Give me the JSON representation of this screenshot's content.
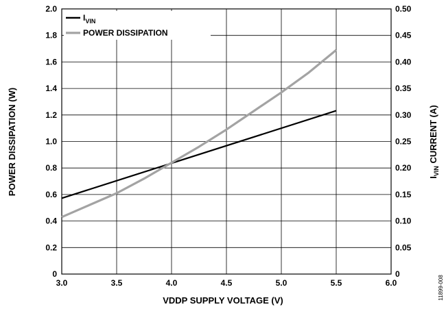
{
  "chart_data": {
    "type": "line",
    "title": "",
    "xlabel": "VDDP SUPPLY VOLTAGE (V)",
    "ylabel_left": "POWER DISSIPATION (W)",
    "ylabel_right": {
      "main": "I",
      "sub": "VIN",
      "rest": " CURRENT (A)"
    },
    "xlim": [
      3.0,
      6.0
    ],
    "ylim_left": [
      0,
      2.0
    ],
    "ylim_right": [
      0,
      0.5
    ],
    "x_ticks": [
      "3.0",
      "3.5",
      "4.0",
      "4.5",
      "5.0",
      "5.5",
      "6.0"
    ],
    "y_left_ticks": [
      "0",
      "0.2",
      "0.4",
      "0.6",
      "0.8",
      "1.0",
      "1.2",
      "1.4",
      "1.6",
      "1.8",
      "2.0"
    ],
    "y_right_ticks": [
      "0",
      "0.05",
      "0.10",
      "0.15",
      "0.20",
      "0.25",
      "0.30",
      "0.35",
      "0.40",
      "0.45",
      "0.50"
    ],
    "grid": true,
    "legend_position": "top-left",
    "series": [
      {
        "legend_main": "I",
        "legend_sub": "VIN",
        "axis": "right",
        "color": "#000000",
        "x": [
          3.0,
          5.5
        ],
        "y": [
          0.143,
          0.308
        ]
      },
      {
        "legend_main": "POWER DISSIPATION",
        "legend_sub": "",
        "axis": "left",
        "color": "#a3a3a3",
        "x": [
          3.0,
          3.25,
          3.5,
          3.75,
          4.0,
          4.25,
          4.5,
          4.75,
          5.0,
          5.25,
          5.5
        ],
        "y": [
          0.43,
          0.52,
          0.61,
          0.72,
          0.84,
          0.96,
          1.09,
          1.23,
          1.37,
          1.52,
          1.69
        ]
      }
    ],
    "figure_id": "11899-008"
  }
}
